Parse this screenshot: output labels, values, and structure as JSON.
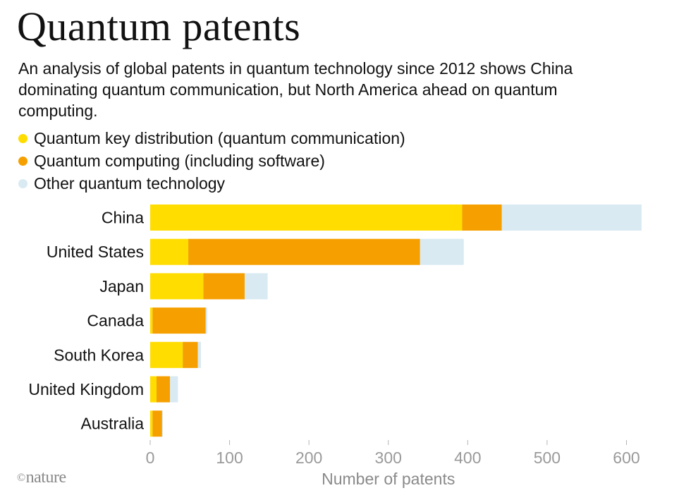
{
  "title": "Quantum patents",
  "subtitle": "An analysis of global patents in quantum technology since 2012 shows China dominating quantum communication, but North America ahead on quantum computing.",
  "credit": "nature",
  "credit_symbol": "©",
  "colors": {
    "qkd": "#FFDD00",
    "computing": "#F5A000",
    "other": "#D9EAF2",
    "axis": "#b5b5b5"
  },
  "chart_data": {
    "type": "bar",
    "orientation": "horizontal",
    "stacked": true,
    "title": "Quantum patents",
    "xlabel": "Number of patents",
    "ylabel": "",
    "xlim": [
      0,
      620
    ],
    "xticks": [
      0,
      100,
      200,
      300,
      400,
      500,
      600
    ],
    "categories": [
      "China",
      "United States",
      "Japan",
      "Canada",
      "South Korea",
      "United Kingdom",
      "Australia"
    ],
    "series": [
      {
        "name": "Quantum key distribution (quantum communication)",
        "color": "#FFDD00",
        "values": [
          393,
          48,
          67,
          3,
          41,
          8,
          3
        ]
      },
      {
        "name": "Quantum computing (including software)",
        "color": "#F5A000",
        "values": [
          50,
          292,
          52,
          67,
          19,
          17,
          12
        ]
      },
      {
        "name": "Other quantum technology",
        "color": "#D9EAF2",
        "values": [
          176,
          55,
          29,
          2,
          4,
          10,
          1
        ]
      }
    ]
  }
}
